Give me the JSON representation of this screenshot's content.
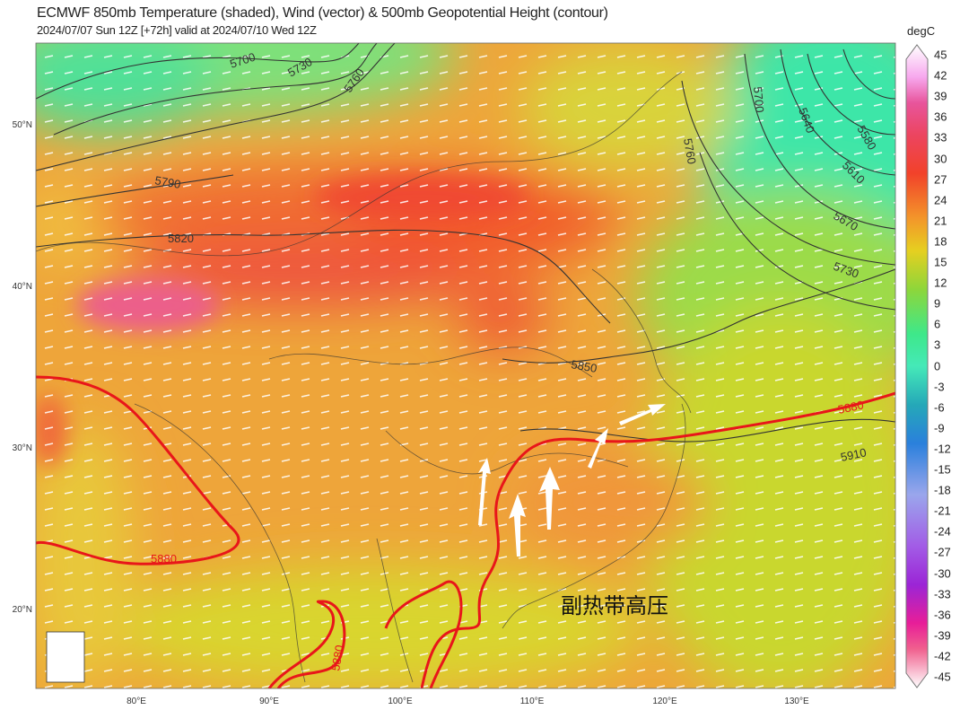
{
  "header": {
    "title": "ECMWF 850mb Temperature (shaded), Wind (vector) & 500mb Geopotential Height (contour)",
    "subtitle": "2024/07/07 Sun 12Z [+72h] valid at 2024/07/10 Wed 12Z"
  },
  "map": {
    "lon_ticks": [
      "80°E",
      "90°E",
      "100°E",
      "110°E",
      "120°E",
      "130°E"
    ],
    "lat_ticks": [
      "50°N",
      "40°N",
      "30°N",
      "20°N"
    ],
    "contour_labels": {
      "c5700a": "5700",
      "c5730a": "5730",
      "c5760a": "5760",
      "c5790": "5790",
      "c5820": "5820",
      "c5850": "5850",
      "c5880w": "5880",
      "c5880e": "5880",
      "c5880s": "5880",
      "c5910": "5910",
      "c5760e": "5760",
      "c5700e": "5700",
      "c5640": "5640",
      "c5580": "5580",
      "c5610": "5610",
      "c5670": "5670",
      "c5730e": "5730"
    },
    "annotation": "副热带高压",
    "colors": {
      "subtropical_high_contour": "#e8161a",
      "contour": "#333333",
      "wind_vector": "#ffffff"
    }
  },
  "colorbar": {
    "unit": "degC",
    "labels": [
      "45",
      "42",
      "39",
      "36",
      "33",
      "30",
      "27",
      "24",
      "21",
      "18",
      "15",
      "12",
      "9",
      "6",
      "3",
      "0",
      "-3",
      "-6",
      "-9",
      "-12",
      "-15",
      "-18",
      "-21",
      "-24",
      "-27",
      "-30",
      "-33",
      "-36",
      "-39",
      "-42",
      "-45"
    ]
  }
}
